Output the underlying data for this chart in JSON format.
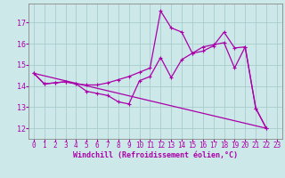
{
  "background_color": "#cce8e8",
  "grid_color": "#aacccc",
  "line_color": "#aa00aa",
  "marker_color": "#aa00aa",
  "xlabel": "Windchill (Refroidissement éolien,°C)",
  "xlabel_fontsize": 6.0,
  "xtick_fontsize": 5.5,
  "ytick_fontsize": 6.0,
  "xlim": [
    -0.5,
    23.5
  ],
  "ylim": [
    11.5,
    17.9
  ],
  "yticks": [
    12,
    13,
    14,
    15,
    16,
    17
  ],
  "xticks": [
    0,
    1,
    2,
    3,
    4,
    5,
    6,
    7,
    8,
    9,
    10,
    11,
    12,
    13,
    14,
    15,
    16,
    17,
    18,
    19,
    20,
    21,
    22,
    23
  ],
  "line1_x": [
    0,
    1,
    2,
    3,
    4,
    5,
    6,
    7,
    8,
    9,
    10,
    11,
    12,
    13,
    14,
    15,
    16,
    17,
    18,
    19,
    20,
    21,
    22
  ],
  "line1_y": [
    14.6,
    14.1,
    14.15,
    14.2,
    14.1,
    13.75,
    13.65,
    13.55,
    13.25,
    13.15,
    14.25,
    14.45,
    15.35,
    14.4,
    15.25,
    15.55,
    15.85,
    15.95,
    16.05,
    14.85,
    15.85,
    12.95,
    12.0
  ],
  "line2_x": [
    0,
    1,
    2,
    3,
    4,
    5,
    6,
    7,
    8,
    9,
    10,
    11,
    12,
    13,
    14,
    15,
    16,
    17,
    18,
    19,
    20,
    21,
    22
  ],
  "line2_y": [
    14.6,
    14.1,
    14.15,
    14.2,
    14.1,
    14.05,
    14.05,
    14.15,
    14.3,
    14.45,
    14.65,
    14.85,
    17.55,
    16.75,
    16.55,
    15.55,
    15.65,
    15.9,
    16.55,
    15.8,
    15.85,
    12.95,
    12.0
  ],
  "line3_x": [
    0,
    22
  ],
  "line3_y": [
    14.6,
    12.0
  ]
}
